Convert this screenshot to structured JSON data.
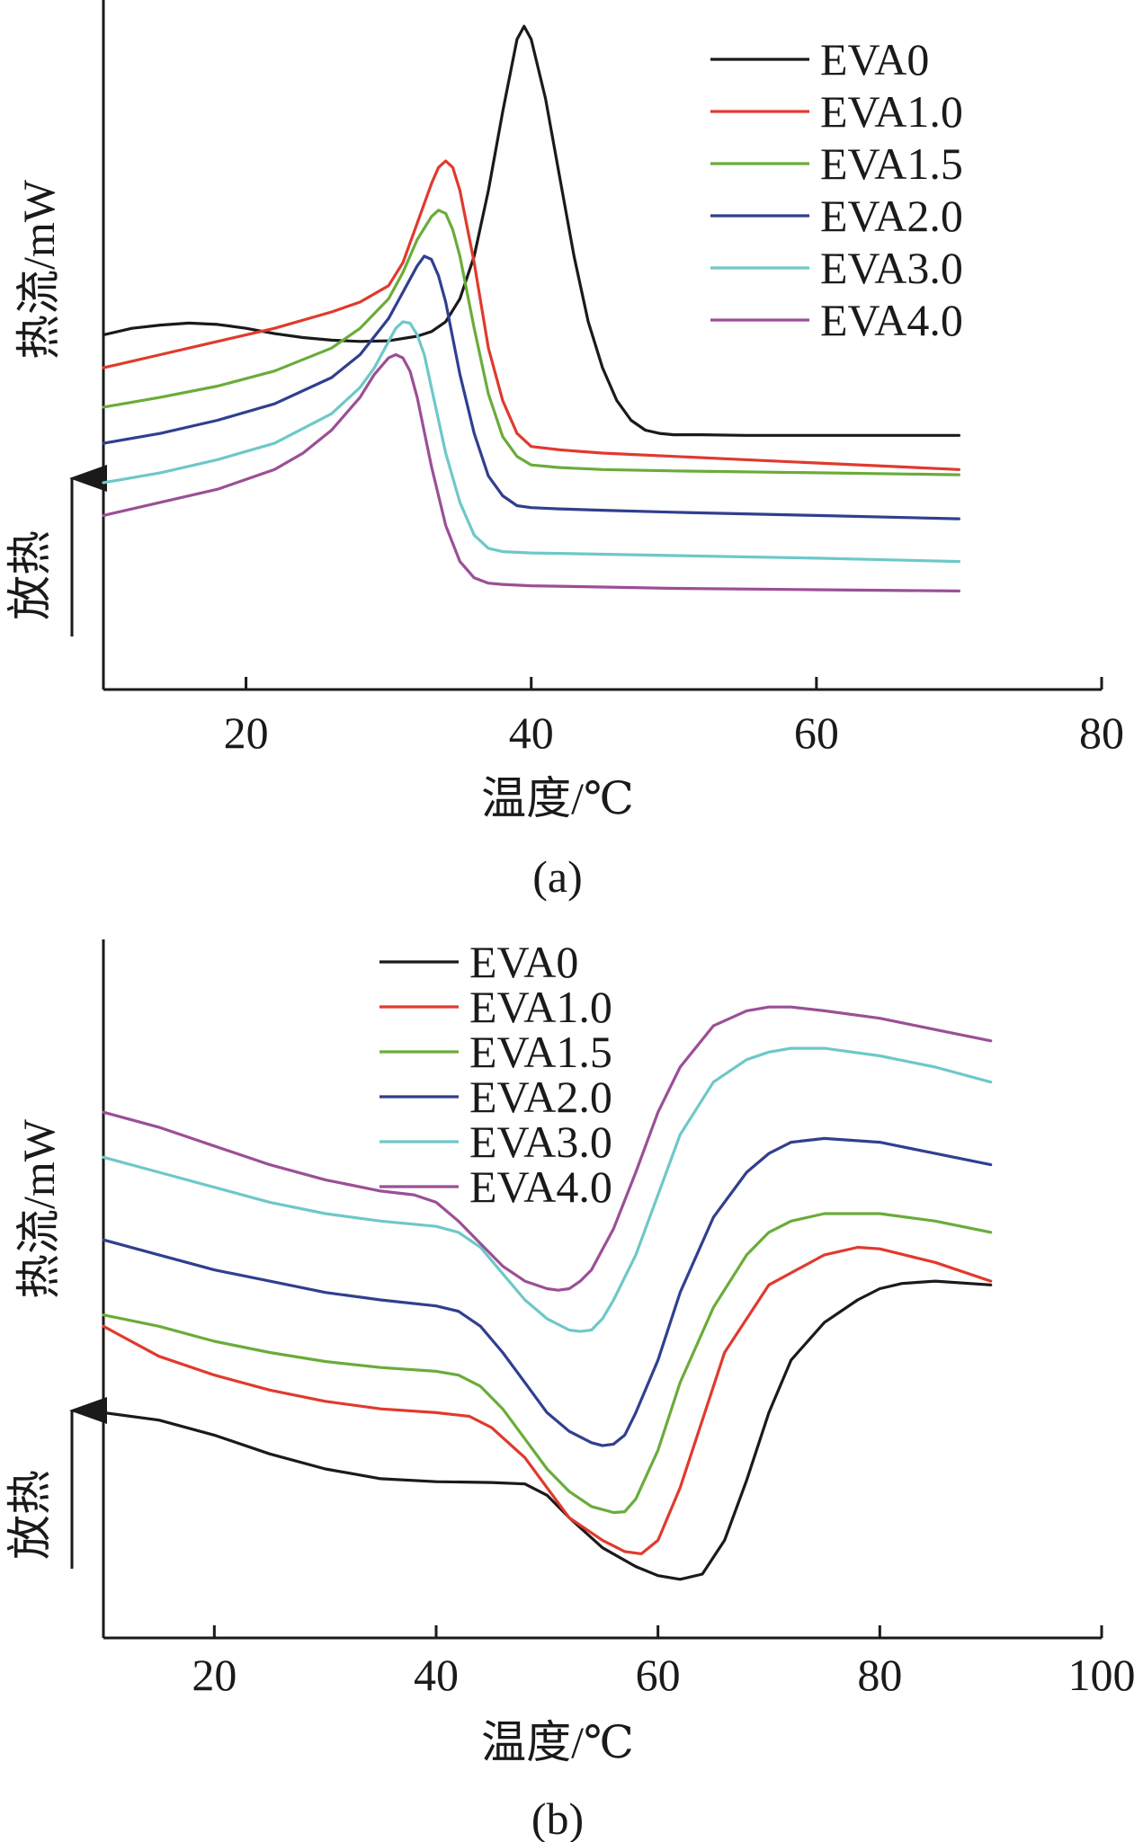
{
  "chart_data": [
    {
      "panel": "(a)",
      "type": "line",
      "xlabel": "温度/℃",
      "ylabel": "热流/mW",
      "exo_label": "放热",
      "xlim": [
        10,
        80
      ],
      "xticks": [
        20,
        40,
        60,
        80
      ],
      "yticks": [],
      "grid": false,
      "legend_position": "top-right",
      "series": [
        {
          "name": "EVA0",
          "color": "#1a1a1a",
          "x": [
            10,
            12,
            14,
            16,
            18,
            20,
            22,
            24,
            26,
            28,
            30,
            32,
            33,
            34,
            35,
            36,
            37,
            38,
            39,
            39.5,
            40,
            41,
            42,
            43,
            44,
            45,
            46,
            47,
            48,
            49,
            50,
            52,
            55,
            60,
            65,
            70
          ],
          "y": [
            5.4,
            5.5,
            5.55,
            5.58,
            5.56,
            5.5,
            5.42,
            5.36,
            5.32,
            5.3,
            5.31,
            5.38,
            5.45,
            5.6,
            5.95,
            6.6,
            7.6,
            8.8,
            9.9,
            10.1,
            9.9,
            9.0,
            7.8,
            6.6,
            5.6,
            4.9,
            4.4,
            4.1,
            3.95,
            3.9,
            3.88,
            3.88,
            3.87,
            3.87,
            3.87,
            3.87
          ]
        },
        {
          "name": "EVA1.0",
          "color": "#e03a2e",
          "x": [
            10,
            14,
            18,
            22,
            26,
            28,
            30,
            31,
            32,
            33,
            33.5,
            34,
            34.5,
            35,
            36,
            37,
            38,
            39,
            40,
            42,
            45,
            50,
            60,
            70
          ],
          "y": [
            4.9,
            5.1,
            5.3,
            5.5,
            5.75,
            5.9,
            6.15,
            6.5,
            7.1,
            7.7,
            7.95,
            8.05,
            7.95,
            7.6,
            6.5,
            5.2,
            4.4,
            3.9,
            3.7,
            3.65,
            3.6,
            3.55,
            3.45,
            3.35
          ]
        },
        {
          "name": "EVA1.5",
          "color": "#6aac3a",
          "x": [
            10,
            14,
            18,
            22,
            26,
            28,
            30,
            31,
            32,
            33,
            33.5,
            34,
            34.5,
            35,
            36,
            37,
            38,
            39,
            40,
            42,
            45,
            50,
            60,
            70
          ],
          "y": [
            4.3,
            4.45,
            4.62,
            4.85,
            5.2,
            5.5,
            5.95,
            6.35,
            6.85,
            7.2,
            7.3,
            7.25,
            7.0,
            6.6,
            5.5,
            4.5,
            3.85,
            3.55,
            3.42,
            3.38,
            3.35,
            3.33,
            3.3,
            3.27
          ]
        },
        {
          "name": "EVA2.0",
          "color": "#303f8e",
          "x": [
            10,
            14,
            18,
            22,
            26,
            28,
            30,
            31,
            32,
            32.5,
            33,
            33.5,
            34,
            35,
            36,
            37,
            38,
            39,
            40,
            42,
            45,
            50,
            60,
            70
          ],
          "y": [
            3.75,
            3.9,
            4.1,
            4.35,
            4.75,
            5.1,
            5.65,
            6.05,
            6.45,
            6.6,
            6.55,
            6.3,
            5.9,
            4.8,
            3.9,
            3.25,
            2.95,
            2.8,
            2.77,
            2.75,
            2.73,
            2.7,
            2.65,
            2.6
          ]
        },
        {
          "name": "EVA3.0",
          "color": "#6ec8c8",
          "x": [
            10,
            14,
            18,
            22,
            26,
            28,
            29,
            30,
            30.5,
            31,
            31.5,
            32,
            32.5,
            33,
            34,
            35,
            36,
            37,
            38,
            40,
            45,
            50,
            60,
            70
          ],
          "y": [
            3.15,
            3.3,
            3.5,
            3.75,
            4.2,
            4.6,
            4.9,
            5.3,
            5.5,
            5.6,
            5.58,
            5.4,
            5.1,
            4.6,
            3.6,
            2.85,
            2.35,
            2.15,
            2.1,
            2.08,
            2.06,
            2.04,
            2.0,
            1.95
          ]
        },
        {
          "name": "EVA4.0",
          "color": "#9b4f96",
          "x": [
            10,
            14,
            18,
            22,
            24,
            26,
            28,
            29,
            30,
            30.5,
            31,
            31.5,
            32,
            33,
            34,
            35,
            36,
            37,
            38,
            40,
            45,
            50,
            60,
            70
          ],
          "y": [
            2.65,
            2.85,
            3.05,
            3.35,
            3.6,
            3.95,
            4.45,
            4.8,
            5.05,
            5.1,
            5.05,
            4.85,
            4.45,
            3.4,
            2.5,
            1.95,
            1.7,
            1.62,
            1.6,
            1.58,
            1.56,
            1.54,
            1.52,
            1.5
          ]
        }
      ]
    },
    {
      "panel": "(b)",
      "type": "line",
      "xlabel": "温度/℃",
      "ylabel": "热流/mW",
      "exo_label": "放热",
      "xlim": [
        10,
        100
      ],
      "xticks": [
        20,
        40,
        60,
        80,
        100
      ],
      "yticks": [],
      "grid": false,
      "legend_position": "top-left",
      "series": [
        {
          "name": "EVA0",
          "color": "#1a1a1a",
          "x": [
            10,
            15,
            20,
            25,
            30,
            35,
            40,
            45,
            48,
            50,
            52,
            55,
            58,
            60,
            62,
            64,
            66,
            68,
            70,
            72,
            75,
            78,
            80,
            82,
            85,
            90
          ],
          "y": [
            4.2,
            4.1,
            3.9,
            3.65,
            3.45,
            3.32,
            3.28,
            3.27,
            3.25,
            3.1,
            2.8,
            2.4,
            2.15,
            2.03,
            1.98,
            2.05,
            2.5,
            3.3,
            4.2,
            4.9,
            5.4,
            5.7,
            5.85,
            5.92,
            5.95,
            5.9
          ]
        },
        {
          "name": "EVA1.0",
          "color": "#e03a2e",
          "x": [
            10,
            15,
            20,
            25,
            30,
            35,
            40,
            43,
            45,
            48,
            50,
            52,
            55,
            57,
            58.5,
            60,
            62,
            64,
            66,
            70,
            75,
            78,
            80,
            85,
            90
          ],
          "y": [
            5.35,
            4.95,
            4.7,
            4.5,
            4.35,
            4.25,
            4.2,
            4.15,
            4.0,
            3.6,
            3.2,
            2.8,
            2.5,
            2.35,
            2.32,
            2.5,
            3.2,
            4.1,
            5.0,
            5.9,
            6.3,
            6.4,
            6.38,
            6.2,
            5.95
          ]
        },
        {
          "name": "EVA1.5",
          "color": "#6aac3a",
          "x": [
            10,
            15,
            20,
            25,
            30,
            35,
            40,
            42,
            44,
            46,
            48,
            50,
            52,
            54,
            56,
            57,
            58,
            60,
            62,
            65,
            68,
            70,
            72,
            75,
            80,
            85,
            90
          ],
          "y": [
            5.5,
            5.35,
            5.15,
            5.0,
            4.88,
            4.8,
            4.75,
            4.7,
            4.55,
            4.25,
            3.85,
            3.45,
            3.15,
            2.95,
            2.87,
            2.88,
            3.05,
            3.7,
            4.6,
            5.6,
            6.3,
            6.6,
            6.75,
            6.85,
            6.85,
            6.75,
            6.6
          ]
        },
        {
          "name": "EVA2.0",
          "color": "#303f8e",
          "x": [
            10,
            15,
            20,
            25,
            30,
            35,
            40,
            42,
            44,
            46,
            48,
            50,
            52,
            54,
            55,
            56,
            57,
            58,
            60,
            62,
            65,
            68,
            70,
            72,
            75,
            80,
            85,
            90
          ],
          "y": [
            6.5,
            6.3,
            6.1,
            5.95,
            5.8,
            5.7,
            5.62,
            5.55,
            5.35,
            5.0,
            4.6,
            4.2,
            3.95,
            3.8,
            3.76,
            3.78,
            3.9,
            4.2,
            4.9,
            5.8,
            6.8,
            7.4,
            7.65,
            7.8,
            7.85,
            7.8,
            7.65,
            7.5
          ]
        },
        {
          "name": "EVA3.0",
          "color": "#6ec8c8",
          "x": [
            10,
            15,
            20,
            25,
            30,
            35,
            40,
            42,
            44,
            46,
            48,
            50,
            52,
            53,
            54,
            55,
            56,
            58,
            60,
            62,
            65,
            68,
            70,
            72,
            75,
            80,
            85,
            90
          ],
          "y": [
            7.6,
            7.4,
            7.2,
            7.0,
            6.85,
            6.75,
            6.68,
            6.6,
            6.4,
            6.05,
            5.7,
            5.45,
            5.3,
            5.28,
            5.3,
            5.45,
            5.7,
            6.3,
            7.1,
            7.9,
            8.6,
            8.9,
            9.0,
            9.05,
            9.05,
            8.95,
            8.8,
            8.6
          ]
        },
        {
          "name": "EVA4.0",
          "color": "#9b4f96",
          "x": [
            10,
            15,
            20,
            25,
            30,
            35,
            38,
            40,
            42,
            44,
            46,
            48,
            50,
            51,
            52,
            53,
            54,
            56,
            58,
            60,
            62,
            65,
            68,
            70,
            72,
            75,
            80,
            85,
            90
          ],
          "y": [
            8.2,
            8.0,
            7.75,
            7.5,
            7.3,
            7.15,
            7.1,
            7.0,
            6.75,
            6.45,
            6.15,
            5.95,
            5.85,
            5.83,
            5.85,
            5.95,
            6.1,
            6.65,
            7.4,
            8.2,
            8.8,
            9.35,
            9.55,
            9.6,
            9.6,
            9.55,
            9.45,
            9.3,
            9.15
          ]
        }
      ]
    }
  ]
}
